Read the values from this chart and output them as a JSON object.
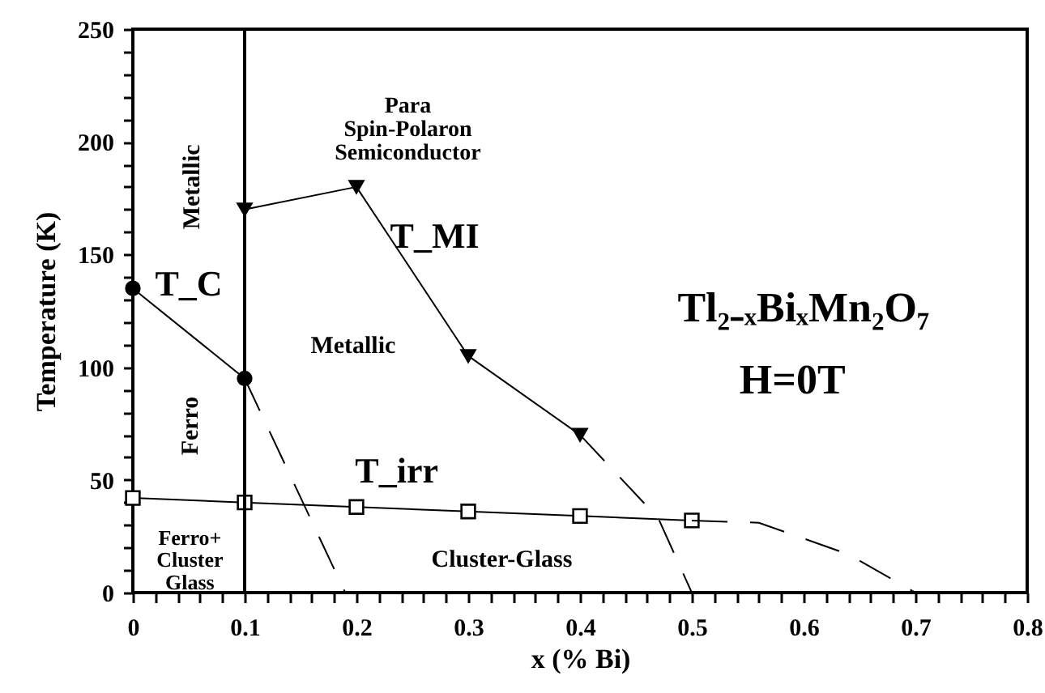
{
  "chart_data": {
    "type": "line",
    "xlabel": "x (% Bi)",
    "ylabel": "Temperature (K)",
    "xlim": [
      0,
      0.8
    ],
    "ylim": [
      0,
      250
    ],
    "xticks": [
      0,
      {
        "value": 0.02,
        "label": null
      },
      {
        "value": 0.04,
        "label": null
      },
      {
        "value": 0.06,
        "label": null
      },
      {
        "value": 0.08,
        "label": null
      },
      0.1,
      {
        "value": 0.12,
        "label": null
      },
      {
        "value": 0.14,
        "label": null
      },
      {
        "value": 0.16,
        "label": null
      },
      {
        "value": 0.18,
        "label": null
      },
      0.2,
      {
        "value": 0.22,
        "label": null
      },
      {
        "value": 0.24,
        "label": null
      },
      {
        "value": 0.26,
        "label": null
      },
      {
        "value": 0.28,
        "label": null
      },
      0.3,
      {
        "value": 0.32,
        "label": null
      },
      {
        "value": 0.34,
        "label": null
      },
      {
        "value": 0.36,
        "label": null
      },
      {
        "value": 0.38,
        "label": null
      },
      0.4,
      {
        "value": 0.42,
        "label": null
      },
      {
        "value": 0.44,
        "label": null
      },
      {
        "value": 0.46,
        "label": null
      },
      {
        "value": 0.48,
        "label": null
      },
      0.5,
      {
        "value": 0.52,
        "label": null
      },
      {
        "value": 0.54,
        "label": null
      },
      {
        "value": 0.56,
        "label": null
      },
      {
        "value": 0.58,
        "label": null
      },
      0.6,
      {
        "value": 0.62,
        "label": null
      },
      {
        "value": 0.64,
        "label": null
      },
      {
        "value": 0.66,
        "label": null
      },
      {
        "value": 0.68,
        "label": null
      },
      0.7,
      {
        "value": 0.72,
        "label": null
      },
      {
        "value": 0.74,
        "label": null
      },
      {
        "value": 0.76,
        "label": null
      },
      {
        "value": 0.78,
        "label": null
      },
      0.8
    ],
    "yticks": [
      0,
      {
        "value": 10,
        "label": null
      },
      {
        "value": 20,
        "label": null
      },
      {
        "value": 30,
        "label": null
      },
      {
        "value": 40,
        "label": null
      },
      50,
      {
        "value": 60,
        "label": null
      },
      {
        "value": 70,
        "label": null
      },
      {
        "value": 80,
        "label": null
      },
      {
        "value": 90,
        "label": null
      },
      100,
      {
        "value": 110,
        "label": null
      },
      {
        "value": 120,
        "label": null
      },
      {
        "value": 130,
        "label": null
      },
      {
        "value": 140,
        "label": null
      },
      150,
      {
        "value": 160,
        "label": null
      },
      {
        "value": 170,
        "label": null
      },
      {
        "value": 180,
        "label": null
      },
      {
        "value": 190,
        "label": null
      },
      200,
      {
        "value": 210,
        "label": null
      },
      {
        "value": 220,
        "label": null
      },
      {
        "value": 230,
        "label": null
      },
      {
        "value": 240,
        "label": null
      },
      250
    ],
    "grid": false,
    "series": [
      {
        "color": "#000000",
        "marker": "circle",
        "line_style": "solid",
        "x": [
          0,
          0.1
        ],
        "values": [
          135,
          95
        ]
      },
      {
        "color": "#000000",
        "marker": "none",
        "line_style": "dashed",
        "x": [
          0.1,
          0.19
        ],
        "values": [
          95,
          0
        ]
      },
      {
        "color": "#000000",
        "marker": "triangle",
        "line_style": "solid",
        "x": [
          0.1,
          0.2,
          0.3,
          0.4
        ],
        "values": [
          170,
          180,
          105,
          70
        ]
      },
      {
        "color": "#000000",
        "marker": "none",
        "line_style": "dashed",
        "x": [
          0.4,
          0.47,
          0.5
        ],
        "values": [
          70,
          33,
          0
        ]
      },
      {
        "color": "#000000",
        "marker": "square",
        "line_style": "solid",
        "x": [
          0,
          0.1,
          0.2,
          0.3,
          0.4,
          0.5
        ],
        "values": [
          42,
          40,
          38,
          36,
          34,
          32
        ]
      },
      {
        "color": "#000000",
        "marker": "none",
        "line_style": "dashed",
        "x": [
          0.5,
          0.56,
          0.64,
          0.7
        ],
        "values": [
          32,
          31,
          17,
          0
        ]
      }
    ],
    "ref_lines": [
      {
        "axis": "x",
        "value": 0.1,
        "label": null,
        "color": "#000000"
      }
    ],
    "annotations": [
      "Para\nSpin-Polaron\nSemiconductor",
      "Metallic",
      "T_MI",
      "T_C",
      "Metallic",
      "Tl₂₋ₓBiₓMn₂O₇",
      "H=0T",
      "Ferro",
      "T_irr",
      "Ferro+\nCluster\nGlass",
      "Cluster-Glass"
    ]
  }
}
